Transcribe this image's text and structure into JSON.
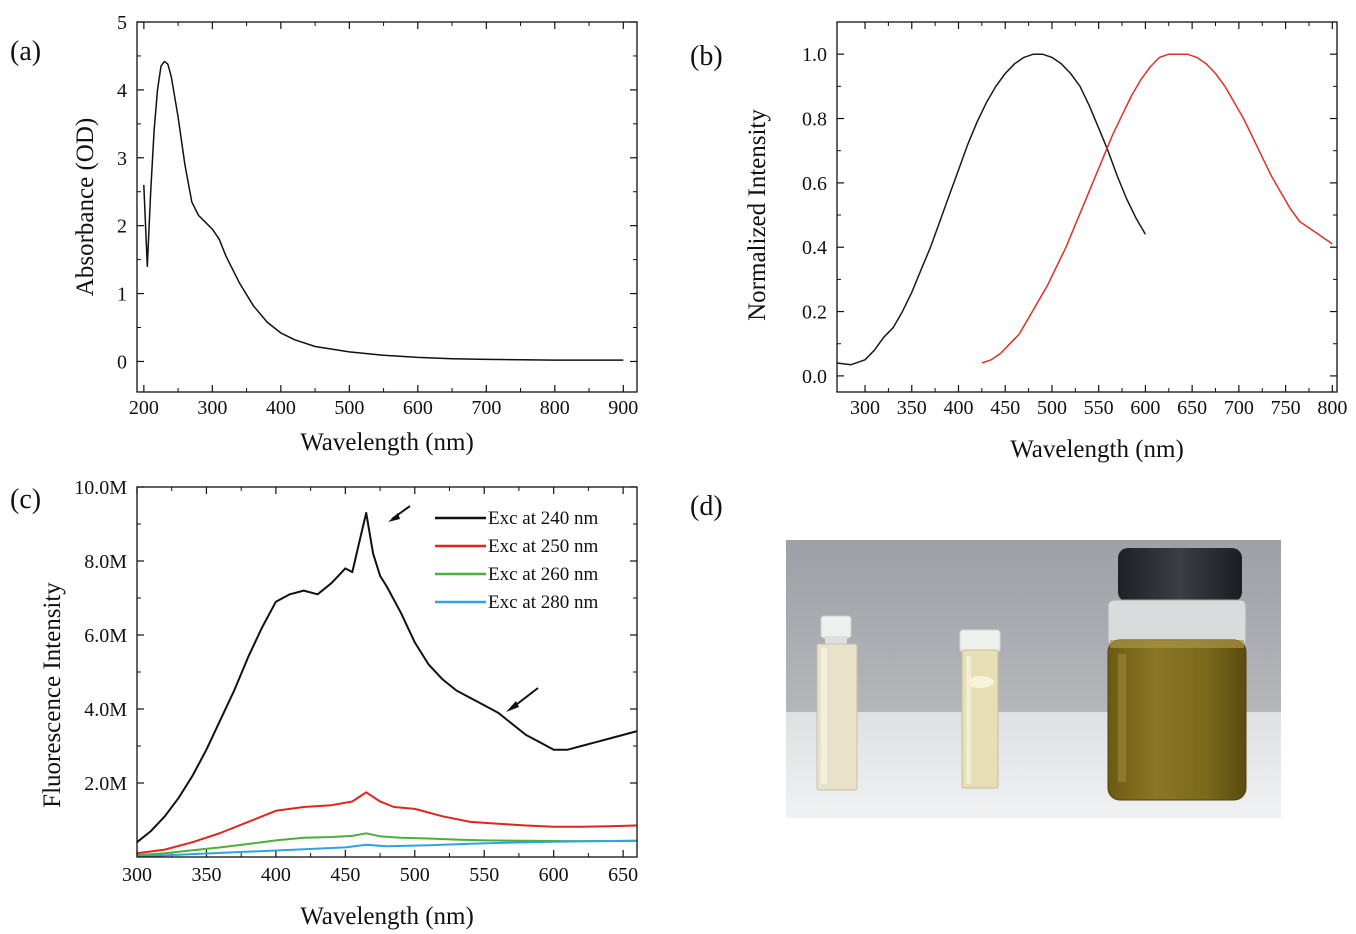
{
  "panels": [
    {
      "letter": "(a)"
    },
    {
      "letter": "(b)"
    },
    {
      "letter": "(c)"
    },
    {
      "letter": "(d)"
    }
  ],
  "photo": {
    "icon": "photo-of-vials",
    "colors": {
      "background_wall": "#a9a9ae",
      "table": "#e9eaec",
      "light_solution": "#ece4c6",
      "dark_solution": "#7d6a1a",
      "cap": "#2a2d33"
    }
  },
  "chart_data": [
    {
      "type": "line",
      "title": "",
      "xlabel": "Wavelength (nm)",
      "ylabel": "Absorbance (OD)",
      "xlim": [
        190,
        920
      ],
      "ylim": [
        -0.45,
        5
      ],
      "xticks": [
        200,
        300,
        400,
        500,
        600,
        700,
        800,
        900
      ],
      "yticks": [
        0,
        1,
        2,
        3,
        4,
        5
      ],
      "grid": false,
      "series": [
        {
          "color": "#111111",
          "x": [
            200,
            205,
            210,
            215,
            220,
            225,
            230,
            235,
            240,
            250,
            260,
            270,
            280,
            290,
            300,
            310,
            320,
            340,
            360,
            380,
            400,
            420,
            450,
            500,
            550,
            600,
            650,
            700,
            750,
            800,
            850,
            900
          ],
          "y": [
            2.6,
            1.4,
            2.5,
            3.4,
            4.0,
            4.35,
            4.42,
            4.38,
            4.2,
            3.6,
            2.9,
            2.35,
            2.15,
            2.05,
            1.95,
            1.8,
            1.55,
            1.15,
            0.82,
            0.58,
            0.42,
            0.32,
            0.22,
            0.14,
            0.09,
            0.06,
            0.04,
            0.03,
            0.025,
            0.02,
            0.02,
            0.02
          ]
        }
      ]
    },
    {
      "type": "line",
      "title": "",
      "xlabel": "Wavelength (nm)",
      "ylabel": "Normalized Intensity",
      "xlim": [
        270,
        805
      ],
      "ylim": [
        -0.05,
        1.1
      ],
      "xticks": [
        300,
        350,
        400,
        450,
        500,
        550,
        600,
        650,
        700,
        750,
        800
      ],
      "yticks": [
        0.0,
        0.2,
        0.4,
        0.6,
        0.8,
        1.0
      ],
      "yticklabels": [
        "0.0",
        "0.2",
        "0.4",
        "0.6",
        "0.8",
        "1.0"
      ],
      "grid": false,
      "series": [
        {
          "color": "#1a1a1a",
          "x": [
            270,
            285,
            300,
            310,
            320,
            330,
            340,
            350,
            360,
            370,
            380,
            390,
            400,
            410,
            420,
            430,
            440,
            450,
            460,
            470,
            480,
            490,
            500,
            510,
            520,
            530,
            540,
            550,
            560,
            570,
            580,
            590,
            600
          ],
          "y": [
            0.04,
            0.035,
            0.05,
            0.08,
            0.12,
            0.15,
            0.2,
            0.26,
            0.33,
            0.4,
            0.48,
            0.56,
            0.64,
            0.72,
            0.79,
            0.85,
            0.9,
            0.94,
            0.97,
            0.99,
            1.0,
            1.0,
            0.99,
            0.97,
            0.94,
            0.9,
            0.84,
            0.77,
            0.7,
            0.62,
            0.55,
            0.49,
            0.44
          ]
        },
        {
          "color": "#e0302a",
          "x": [
            425,
            435,
            445,
            455,
            465,
            475,
            485,
            495,
            505,
            515,
            525,
            535,
            545,
            555,
            565,
            575,
            585,
            595,
            605,
            615,
            625,
            635,
            645,
            655,
            665,
            675,
            685,
            695,
            705,
            715,
            725,
            735,
            745,
            755,
            765,
            775,
            785,
            795,
            800
          ],
          "y": [
            0.04,
            0.05,
            0.07,
            0.1,
            0.13,
            0.18,
            0.23,
            0.28,
            0.34,
            0.4,
            0.47,
            0.54,
            0.61,
            0.68,
            0.75,
            0.81,
            0.87,
            0.92,
            0.96,
            0.99,
            1.0,
            1.0,
            1.0,
            0.99,
            0.97,
            0.94,
            0.9,
            0.85,
            0.8,
            0.74,
            0.68,
            0.62,
            0.57,
            0.52,
            0.48,
            0.46,
            0.44,
            0.42,
            0.41
          ]
        }
      ]
    },
    {
      "type": "line",
      "title": "",
      "xlabel": "Wavelength (nm)",
      "ylabel": "Fluorescence Intensity",
      "xlim": [
        300,
        660
      ],
      "ylim": [
        0,
        10000000
      ],
      "xticks": [
        300,
        350,
        400,
        450,
        500,
        550,
        600,
        650
      ],
      "yticks": [
        2000000,
        4000000,
        6000000,
        8000000,
        10000000
      ],
      "yticklabels": [
        "2.0M",
        "4.0M",
        "6.0M",
        "8.0M",
        "10.0M"
      ],
      "grid": false,
      "legend_position": "top-right",
      "annotations": [
        "arrow near 465 nm peak",
        "arrow near 560 nm shoulder"
      ],
      "series": [
        {
          "name": "Exc at 240 nm",
          "color": "#111111",
          "x": [
            300,
            310,
            320,
            330,
            340,
            350,
            360,
            370,
            380,
            390,
            400,
            410,
            420,
            430,
            440,
            445,
            450,
            455,
            460,
            465,
            470,
            475,
            480,
            490,
            500,
            510,
            520,
            530,
            540,
            550,
            560,
            570,
            580,
            590,
            600,
            610,
            620,
            630,
            640,
            650,
            660
          ],
          "y": [
            400000,
            700000,
            1100000,
            1600000,
            2200000,
            2900000,
            3700000,
            4500000,
            5400000,
            6200000,
            6900000,
            7100000,
            7200000,
            7100000,
            7400000,
            7600000,
            7800000,
            7700000,
            8500000,
            9300000,
            8200000,
            7600000,
            7300000,
            6600000,
            5800000,
            5200000,
            4800000,
            4500000,
            4300000,
            4100000,
            3900000,
            3600000,
            3300000,
            3100000,
            2900000,
            2900000,
            3000000,
            3100000,
            3200000,
            3300000,
            3400000
          ]
        },
        {
          "name": "Exc at 250 nm",
          "color": "#e02520",
          "x": [
            300,
            320,
            340,
            360,
            380,
            400,
            420,
            440,
            455,
            465,
            475,
            485,
            500,
            520,
            540,
            560,
            580,
            600,
            620,
            640,
            660
          ],
          "y": [
            100000,
            200000,
            400000,
            650000,
            950000,
            1250000,
            1350000,
            1400000,
            1500000,
            1750000,
            1500000,
            1350000,
            1300000,
            1100000,
            950000,
            900000,
            850000,
            820000,
            820000,
            830000,
            850000
          ]
        },
        {
          "name": "Exc at 260 nm",
          "color": "#4cae3c",
          "x": [
            300,
            320,
            340,
            360,
            380,
            400,
            420,
            440,
            455,
            465,
            475,
            490,
            510,
            530,
            550,
            580,
            610,
            640,
            660
          ],
          "y": [
            50000,
            100000,
            180000,
            260000,
            350000,
            450000,
            520000,
            540000,
            570000,
            640000,
            560000,
            520000,
            500000,
            470000,
            450000,
            440000,
            430000,
            430000,
            440000
          ]
        },
        {
          "name": "Exc at 280 nm",
          "color": "#2ea4e0",
          "x": [
            300,
            330,
            360,
            390,
            420,
            450,
            465,
            480,
            510,
            540,
            570,
            600,
            630,
            660
          ],
          "y": [
            20000,
            60000,
            110000,
            160000,
            210000,
            260000,
            330000,
            290000,
            320000,
            360000,
            390000,
            410000,
            430000,
            440000
          ]
        }
      ]
    }
  ]
}
